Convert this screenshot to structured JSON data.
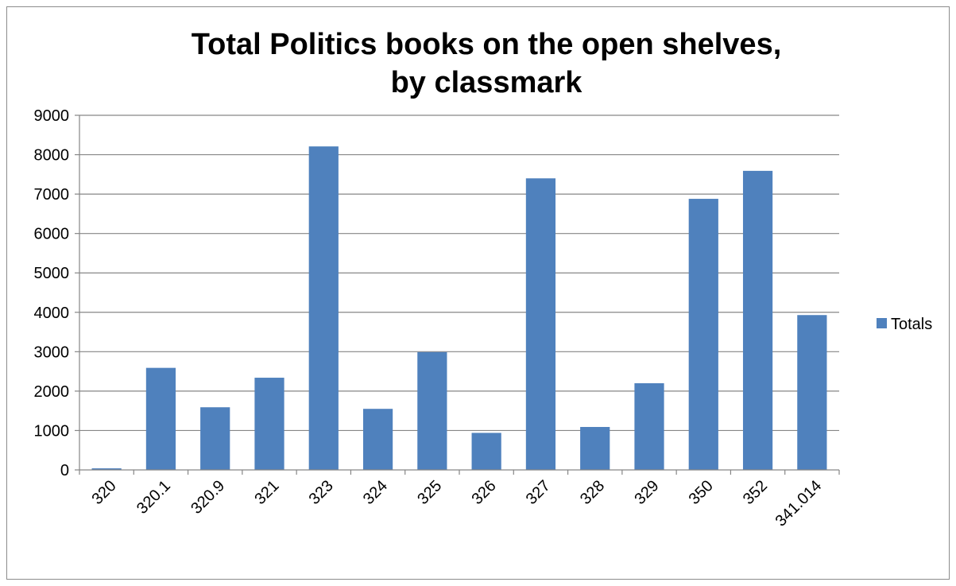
{
  "chart_data": {
    "type": "bar",
    "title_lines": [
      "Total Politics books on the open shelves,",
      "by classmark"
    ],
    "categories": [
      "320",
      "320.1",
      "320.9",
      "321",
      "323",
      "324",
      "325",
      "326",
      "327",
      "328",
      "329",
      "350",
      "352",
      "341.014"
    ],
    "series": [
      {
        "name": "Totals",
        "color": "#4f81bd",
        "values": [
          40,
          2590,
          1590,
          2340,
          8210,
          1550,
          2990,
          940,
          7400,
          1090,
          2200,
          6880,
          7590,
          3930
        ]
      }
    ],
    "yticks": [
      "0",
      "1000",
      "2000",
      "3000",
      "4000",
      "5000",
      "6000",
      "7000",
      "8000",
      "9000"
    ],
    "ylim": [
      0,
      9000
    ],
    "grid": true,
    "legend_position": "right",
    "gridline_color": "#868686",
    "frame_color": "#8c8c8c"
  }
}
